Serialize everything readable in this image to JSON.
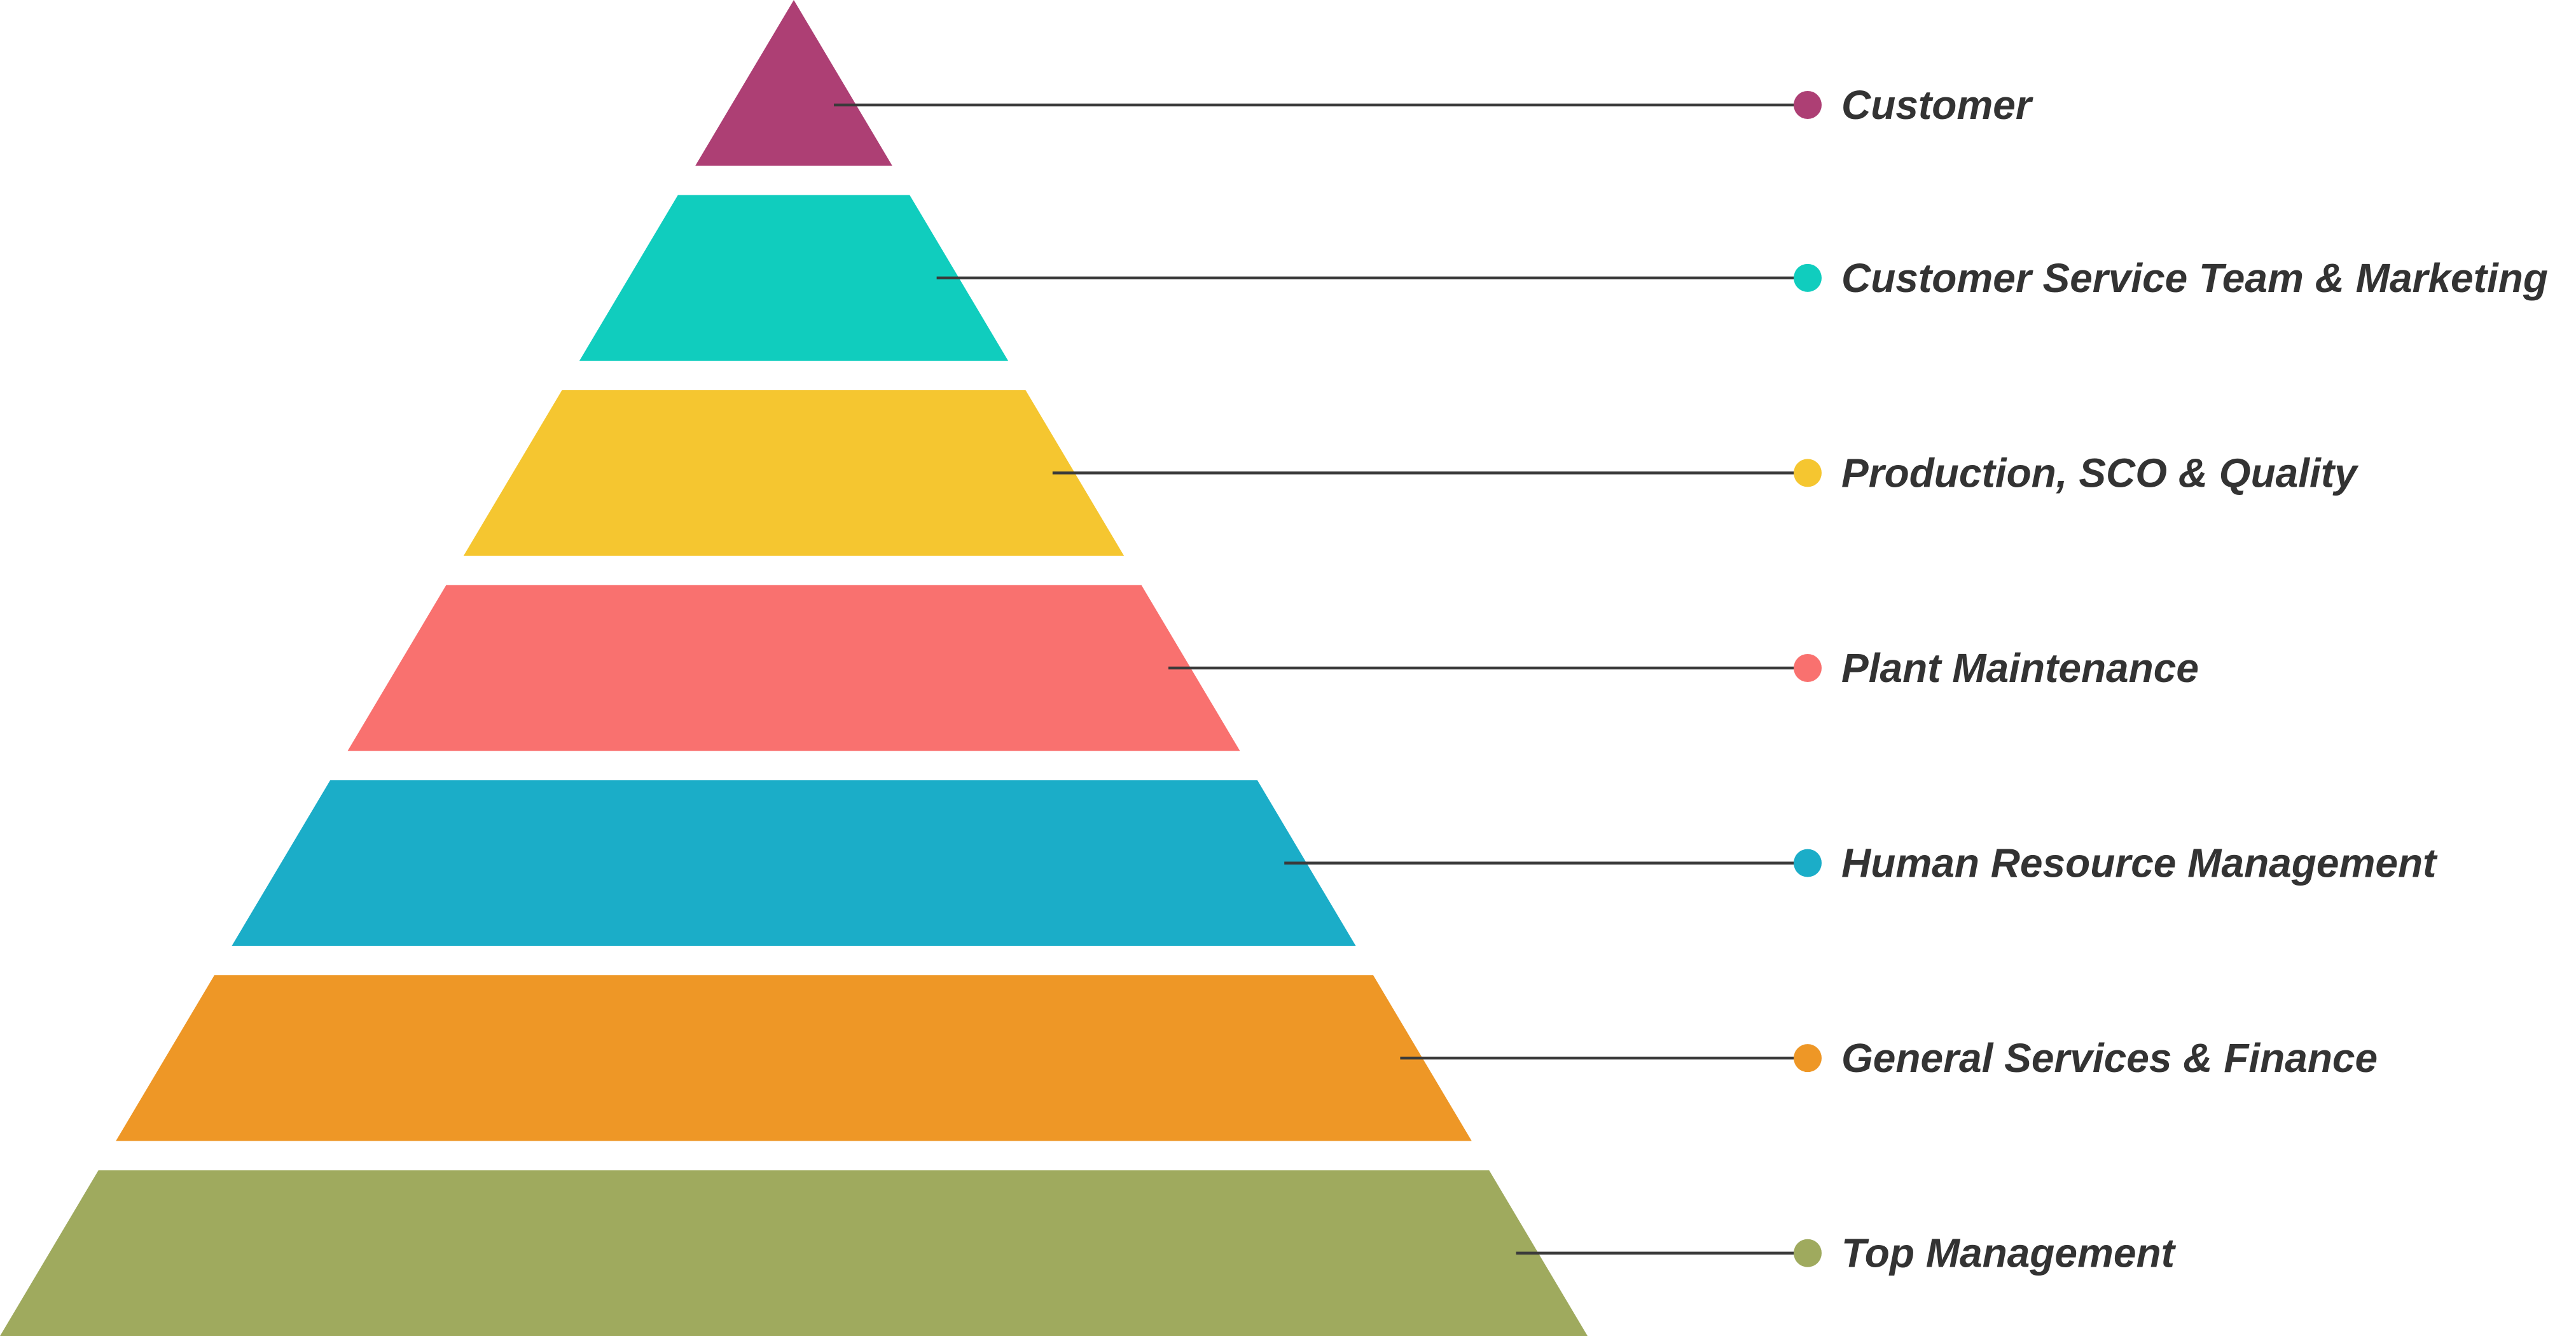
{
  "pyramid": {
    "tiers": [
      {
        "label": "Customer",
        "color": "#AD3F74"
      },
      {
        "label": "Customer Service Team & Marketing",
        "color": "#10CDBE"
      },
      {
        "label": "Production, SCO & Quality",
        "color": "#F5C630"
      },
      {
        "label": "Plant Maintenance",
        "color": "#F9716F"
      },
      {
        "label": "Human Resource Management",
        "color": "#1BADC8"
      },
      {
        "label": "General Services & Finance",
        "color": "#EE9726"
      },
      {
        "label": "Top Management",
        "color": "#9FAA5E"
      }
    ]
  }
}
